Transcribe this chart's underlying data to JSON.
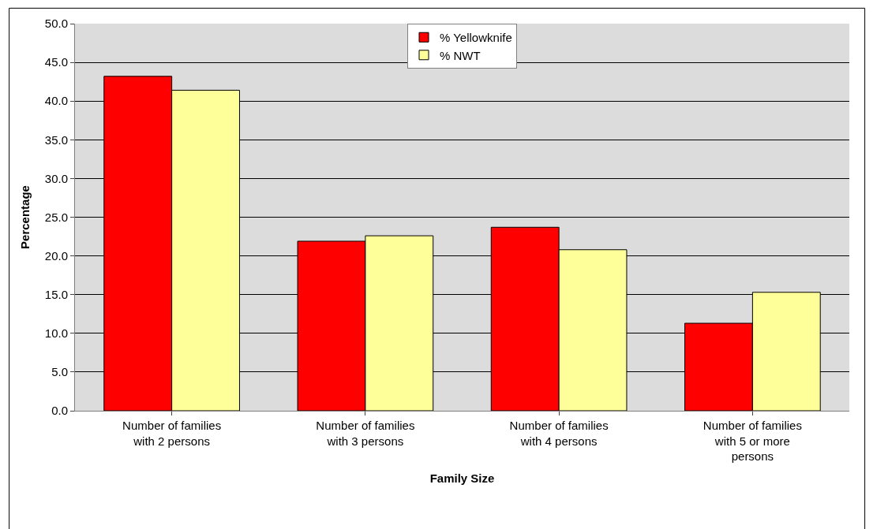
{
  "chart_data": {
    "type": "bar",
    "xlabel": "Family Size",
    "ylabel": "Percentage",
    "categories": [
      "Number of families with 2 persons",
      "Number of families with 3 persons",
      "Number of families with 4 persons",
      "Number of families with 5 or more persons"
    ],
    "series": [
      {
        "name": "% Yellowknife",
        "color": "#ff0000",
        "values": [
          43.2,
          21.9,
          23.7,
          11.3
        ]
      },
      {
        "name": "% NWT",
        "color": "#ffff99",
        "values": [
          41.4,
          22.6,
          20.8,
          15.3
        ]
      }
    ],
    "ylim": [
      0,
      50
    ],
    "yticks": [
      {
        "value": 0,
        "label": "0.0"
      },
      {
        "value": 5,
        "label": "5.0"
      },
      {
        "value": 10,
        "label": "10.0"
      },
      {
        "value": 15,
        "label": "15.0"
      },
      {
        "value": 20,
        "label": "20.0"
      },
      {
        "value": 25,
        "label": "25.0"
      },
      {
        "value": 30,
        "label": "30.0"
      },
      {
        "value": 35,
        "label": "35.0"
      },
      {
        "value": 40,
        "label": "40.0"
      },
      {
        "value": 45,
        "label": "45.0"
      },
      {
        "value": 50,
        "label": "50.0"
      }
    ],
    "grid": "y",
    "legend": "top"
  }
}
